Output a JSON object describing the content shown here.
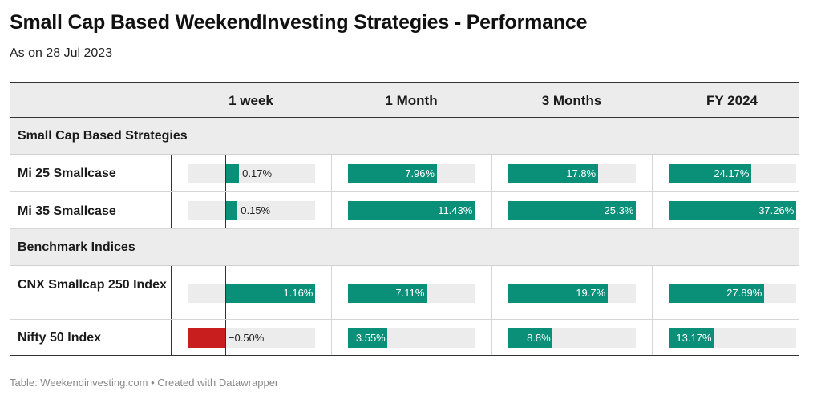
{
  "title": "Small Cap Based WeekendInvesting Strategies - Performance",
  "subtitle": "As on 28 Jul 2023",
  "footer": "Table: Weekendinvesting.com • Created with Datawrapper",
  "colors": {
    "positive": "#0a9079",
    "negative": "#c81e1e",
    "bar_background": "#ececec"
  },
  "chart_data": {
    "type": "table",
    "columns": [
      "1 week",
      "1 Month",
      "3 Months",
      "FY 2024"
    ],
    "groups": [
      {
        "label": "Small Cap Based Strategies",
        "rows": [
          {
            "name": "Mi 25 Smallcase",
            "values": [
              0.17,
              7.96,
              17.8,
              24.17
            ],
            "labels": [
              "0.17%",
              "7.96%",
              "17.8%",
              "24.17%"
            ]
          },
          {
            "name": "Mi 35 Smallcase",
            "values": [
              0.15,
              11.43,
              25.3,
              37.26
            ],
            "labels": [
              "0.15%",
              "11.43%",
              "25.3%",
              "37.26%"
            ]
          }
        ]
      },
      {
        "label": "Benchmark Indices",
        "rows": [
          {
            "name": "CNX Smallcap 250 Index",
            "values": [
              1.16,
              7.11,
              19.7,
              27.89
            ],
            "labels": [
              "1.16%",
              "7.11%",
              "19.7%",
              "27.89%"
            ]
          },
          {
            "name": "Nifty 50 Index",
            "values": [
              -0.5,
              3.55,
              8.8,
              13.17
            ],
            "labels": [
              "−0.50%",
              "3.55%",
              "8.8%",
              "13.17%"
            ]
          }
        ]
      }
    ]
  }
}
